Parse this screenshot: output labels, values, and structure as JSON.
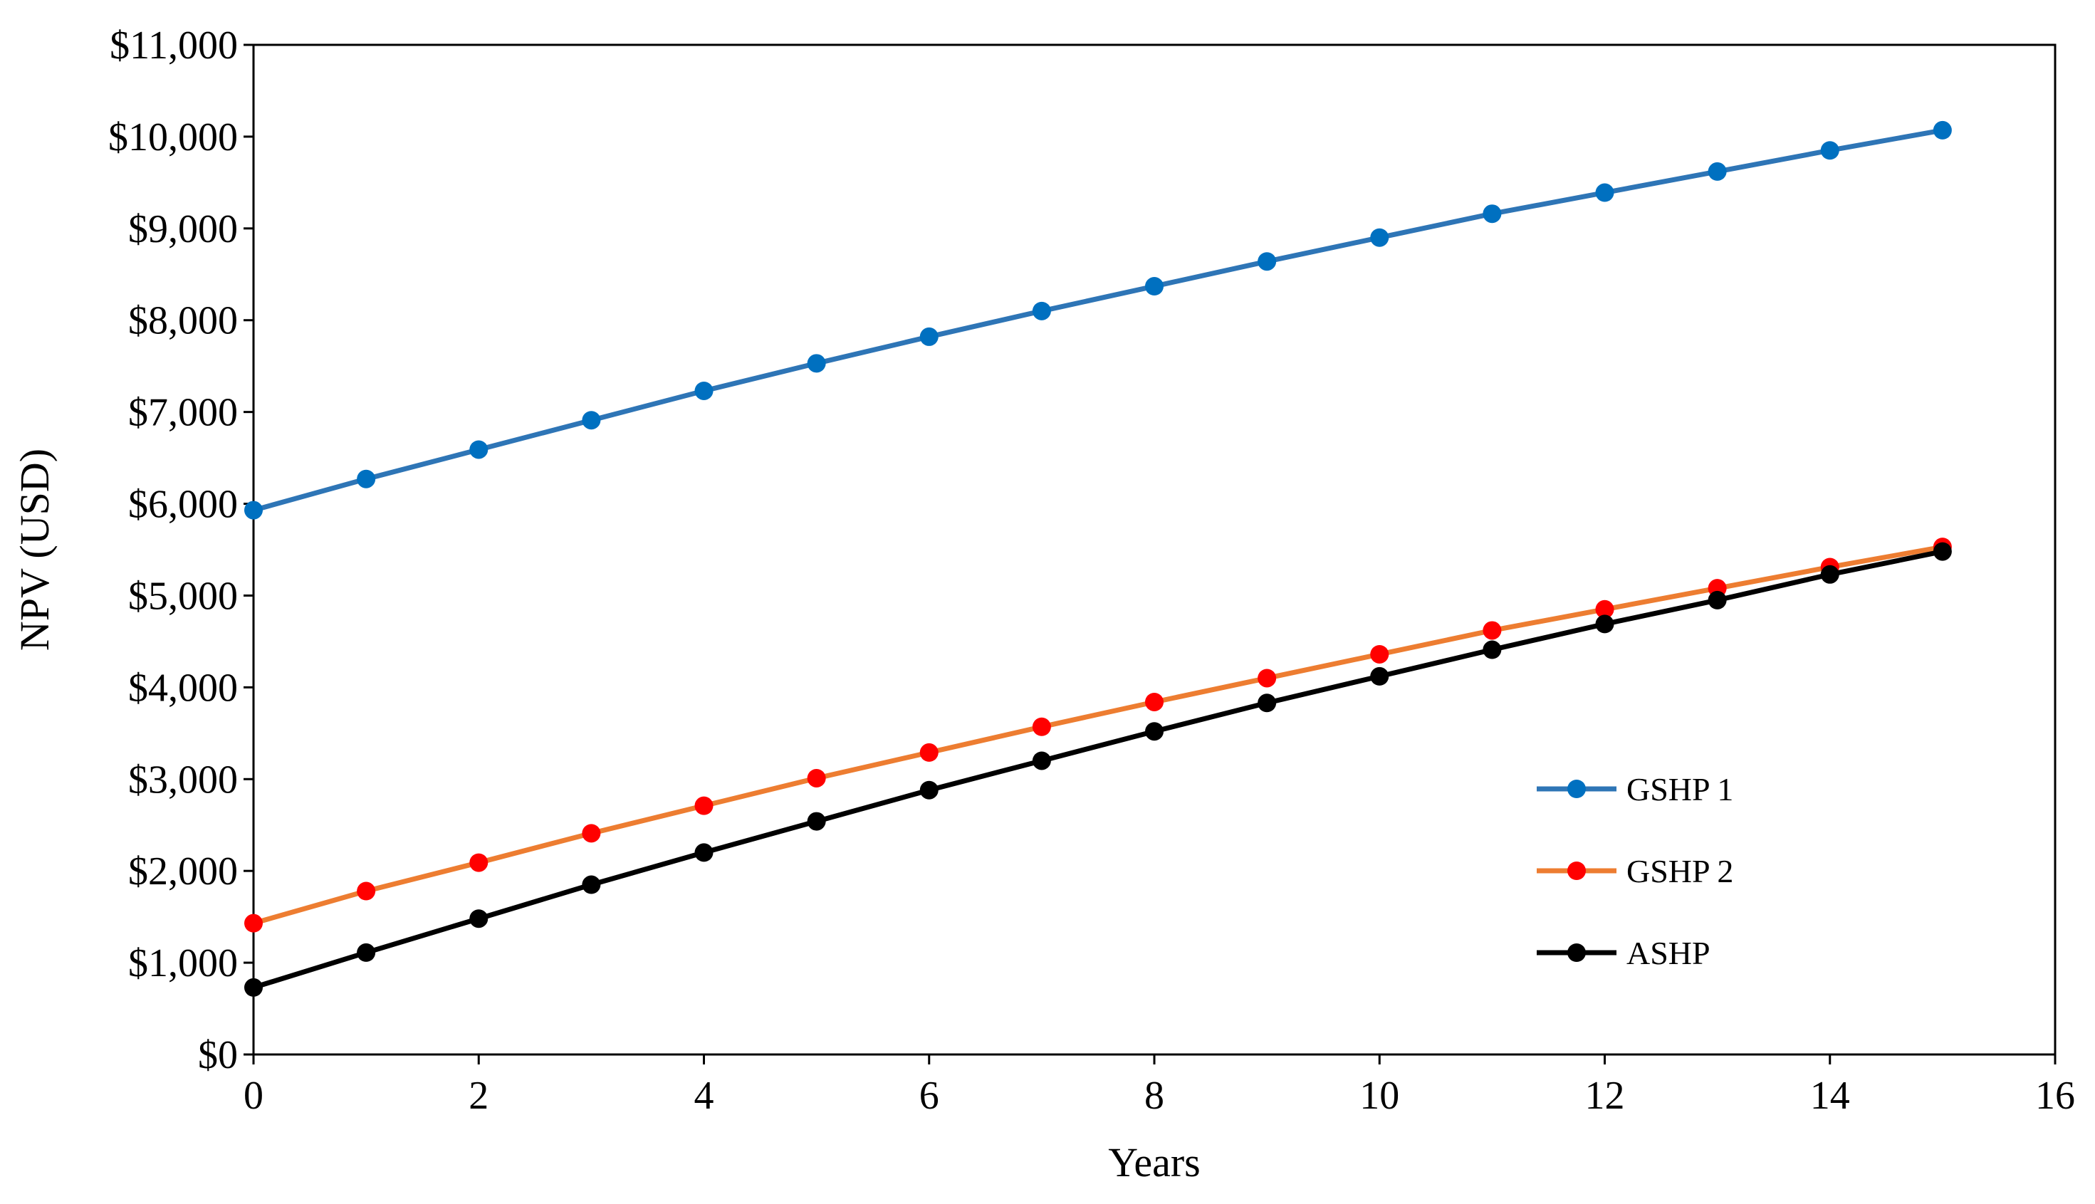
{
  "chart_data": {
    "type": "line",
    "title": "",
    "xlabel": "Years",
    "ylabel": "NPV (USD)",
    "xlim": [
      0,
      16
    ],
    "ylim": [
      0,
      11000
    ],
    "xticks": [
      0,
      2,
      4,
      6,
      8,
      10,
      12,
      14,
      16
    ],
    "xtick_labels": [
      "0",
      "2",
      "4",
      "6",
      "8",
      "10",
      "12",
      "14",
      "16"
    ],
    "yticks": [
      0,
      1000,
      2000,
      3000,
      4000,
      5000,
      6000,
      7000,
      8000,
      9000,
      10000,
      11000
    ],
    "ytick_labels": [
      "$0",
      "$1,000",
      "$2,000",
      "$3,000",
      "$4,000",
      "$5,000",
      "$6,000",
      "$7,000",
      "$8,000",
      "$9,000",
      "$10,000",
      "$11,000"
    ],
    "grid": false,
    "legend_position": "center-right",
    "x": [
      0,
      1,
      2,
      3,
      4,
      5,
      6,
      7,
      8,
      9,
      10,
      11,
      12,
      13,
      14,
      15
    ],
    "series": [
      {
        "name": "GSHP 1",
        "line_color": "#2E75B6",
        "marker_color": "#0070C0",
        "values": [
          5930,
          6270,
          6590,
          6910,
          7230,
          7530,
          7820,
          8100,
          8370,
          8640,
          8900,
          9160,
          9390,
          9620,
          9850,
          10070
        ]
      },
      {
        "name": "GSHP 2",
        "line_color": "#ED7D31",
        "marker_color": "#FF0000",
        "values": [
          1430,
          1780,
          2090,
          2410,
          2710,
          3010,
          3290,
          3570,
          3840,
          4100,
          4360,
          4620,
          4850,
          5080,
          5310,
          5530
        ]
      },
      {
        "name": "ASHP",
        "line_color": "#000000",
        "marker_color": "#000000",
        "values": [
          730,
          1110,
          1480,
          1850,
          2200,
          2540,
          2880,
          3200,
          3520,
          3830,
          4120,
          4410,
          4690,
          4950,
          5230,
          5480
        ]
      }
    ]
  }
}
